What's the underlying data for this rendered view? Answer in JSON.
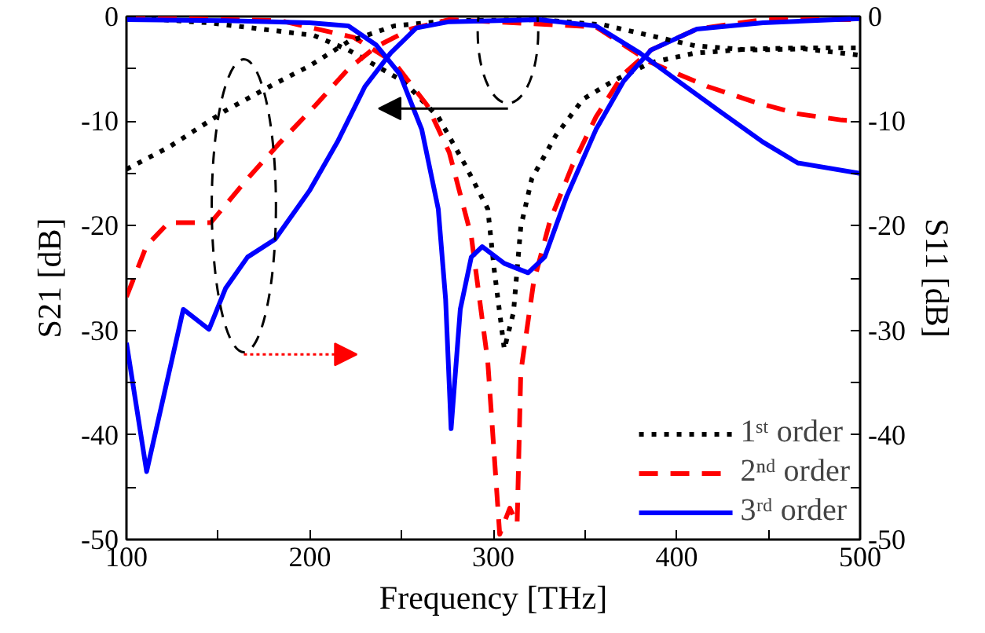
{
  "chart_data": {
    "type": "line",
    "xlabel": "Frequency [THz]",
    "ylabel": "S21 [dB]",
    "y2label": "S11 [dB]",
    "xlim": [
      100,
      500
    ],
    "xticks": [
      100,
      {
        "value": 150,
        "label": null
      },
      200,
      {
        "value": 250,
        "label": null
      },
      300,
      {
        "value": 350,
        "label": null
      },
      400,
      {
        "value": 450,
        "label": null
      },
      500
    ],
    "ylim": [
      -50,
      0
    ],
    "yticks": [
      -50,
      {
        "value": -45,
        "label": null
      },
      -40,
      {
        "value": -35,
        "label": null
      },
      -30,
      {
        "value": -25,
        "label": null
      },
      -20,
      {
        "value": -15,
        "label": null
      },
      -10,
      {
        "value": -5,
        "label": null
      },
      0
    ],
    "y2lim": [
      -50,
      0
    ],
    "y2ticks": [
      -50,
      {
        "value": -45,
        "label": null
      },
      -40,
      {
        "value": -35,
        "label": null
      },
      -30,
      {
        "value": -25,
        "label": null
      },
      -20,
      {
        "value": -15,
        "label": null
      },
      -10,
      {
        "value": -5,
        "label": null
      },
      0
    ],
    "grid": false,
    "legend": "bottom right",
    "marker": "none",
    "series": [
      {
        "name": "1ˢᵗ order",
        "color": "#000000",
        "line_style": "dotted",
        "x": [
          100,
          123,
          154,
          178,
          200,
          221,
          246,
          276,
          325,
          360,
          385,
          410,
          440,
          470,
          500
        ],
        "values": [
          -14.6,
          -12.5,
          -9,
          -6.7,
          -4.7,
          -2.4,
          -0.9,
          -0.4,
          -0.3,
          -0.8,
          -1.8,
          -2.8,
          -3.2,
          -3.1,
          -3.7
        ]
      },
      {
        "name": "2ⁿᵈ order",
        "color": "#ff0000",
        "line_style": "dashed",
        "x": [
          100,
          111,
          123,
          146,
          166,
          184,
          203,
          221,
          236,
          255,
          276,
          356,
          386,
          417,
          441,
          466,
          490,
          500
        ],
        "values": [
          -26.8,
          -21.9,
          -19.7,
          -19.7,
          -15.5,
          -12,
          -8.5,
          -5,
          -2.9,
          -1.2,
          -0.3,
          -1,
          -4.4,
          -6.7,
          -8.1,
          -9.3,
          -9.9,
          -10
        ]
      },
      {
        "name": "3ʳᵈ order",
        "color": "#0000ff",
        "line_style": "solid",
        "x": [
          100,
          111,
          131,
          145,
          154,
          166,
          181,
          200,
          215,
          230,
          244,
          258,
          276,
          325,
          356,
          380,
          401,
          423,
          447,
          466,
          500
        ],
        "values": [
          -31.2,
          -43.5,
          -28,
          -29.9,
          -26,
          -23,
          -21.3,
          -16.6,
          -12,
          -6.7,
          -3.5,
          -1.1,
          -0.5,
          -0.3,
          -0.9,
          -3.5,
          -6.2,
          -9,
          -12,
          -14,
          -15
        ]
      },
      {
        "color": "#000000",
        "line_style": "dotted",
        "axis": "y2",
        "x": [
          100,
          145,
          202,
          221,
          251,
          270,
          285,
          297,
          300.5,
          306,
          311,
          315,
          321,
          334,
          349,
          365,
          386,
          410,
          440,
          470,
          500
        ],
        "values": [
          -0.1,
          -0.6,
          -1.8,
          -3.2,
          -6.2,
          -9.6,
          -14.3,
          -18.4,
          -24.2,
          -31.8,
          -28.3,
          -20.1,
          -15.5,
          -11.4,
          -7.9,
          -6.2,
          -4.4,
          -3.5,
          -3.1,
          -3,
          -3
        ]
      },
      {
        "color": "#ff0000",
        "line_style": "dashed",
        "axis": "y2",
        "x": [
          100,
          184,
          224,
          246,
          264,
          276,
          288,
          297,
          303.5,
          309,
          313,
          315,
          322,
          331,
          343,
          356,
          371,
          386,
          411,
          447,
          500
        ],
        "values": [
          -0.1,
          -0.4,
          -2,
          -4.4,
          -8.5,
          -13,
          -21,
          -33,
          -49.5,
          -47,
          -48.5,
          -34,
          -25.4,
          -19.5,
          -14.3,
          -9.6,
          -5.5,
          -3.2,
          -1.2,
          -0.3,
          -0.3
        ]
      },
      {
        "color": "#0000ff",
        "line_style": "solid",
        "axis": "y2",
        "x": [
          100,
          154,
          200,
          221,
          236,
          249,
          261,
          270,
          274,
          277,
          282,
          288,
          294,
          306,
          319,
          328,
          340,
          356,
          371,
          386,
          411,
          447,
          500
        ],
        "values": [
          -0.3,
          -0.4,
          -0.6,
          -0.9,
          -2.7,
          -5.5,
          -10.8,
          -18.4,
          -27,
          -39.4,
          -28,
          -23,
          -22,
          -23.6,
          -24.5,
          -23,
          -17.2,
          -10.8,
          -6.2,
          -3.2,
          -1.2,
          -0.6,
          -0.2
        ]
      }
    ]
  }
}
